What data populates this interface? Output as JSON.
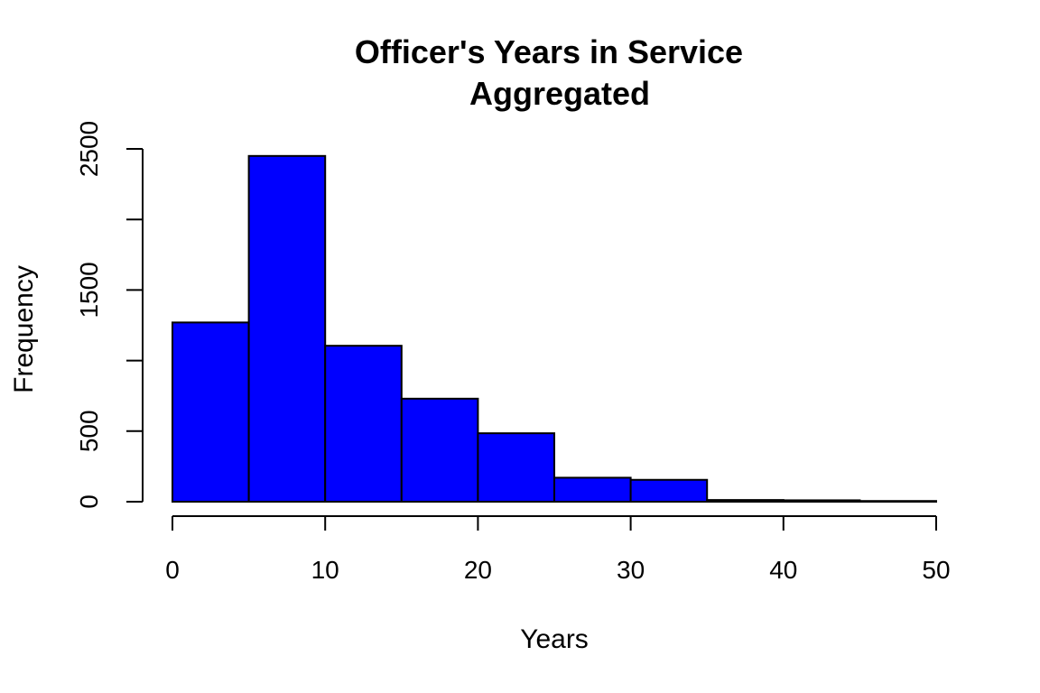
{
  "chart_data": {
    "type": "bar",
    "title": "Officer's Years in Service",
    "subtitle": "Aggregated",
    "xlabel": "Years",
    "ylabel": "Frequency",
    "bar_color": "#0000ff",
    "border_color": "#000000",
    "bin_edges": [
      0,
      5,
      10,
      15,
      20,
      25,
      30,
      35,
      40,
      45,
      50
    ],
    "values": [
      1270,
      2450,
      1105,
      730,
      485,
      170,
      155,
      12,
      10,
      5
    ],
    "xlim": [
      0,
      50
    ],
    "ylim": [
      0,
      2500
    ],
    "x_ticks": [
      0,
      10,
      20,
      30,
      40,
      50
    ],
    "x_tick_labels": [
      "0",
      "10",
      "20",
      "30",
      "40",
      "50"
    ],
    "y_ticks": [
      0,
      500,
      1000,
      1500,
      2000,
      2500
    ],
    "y_tick_labels": [
      "0",
      "500",
      "",
      "1500",
      "",
      "2500"
    ],
    "grid": false,
    "legend": "none"
  }
}
